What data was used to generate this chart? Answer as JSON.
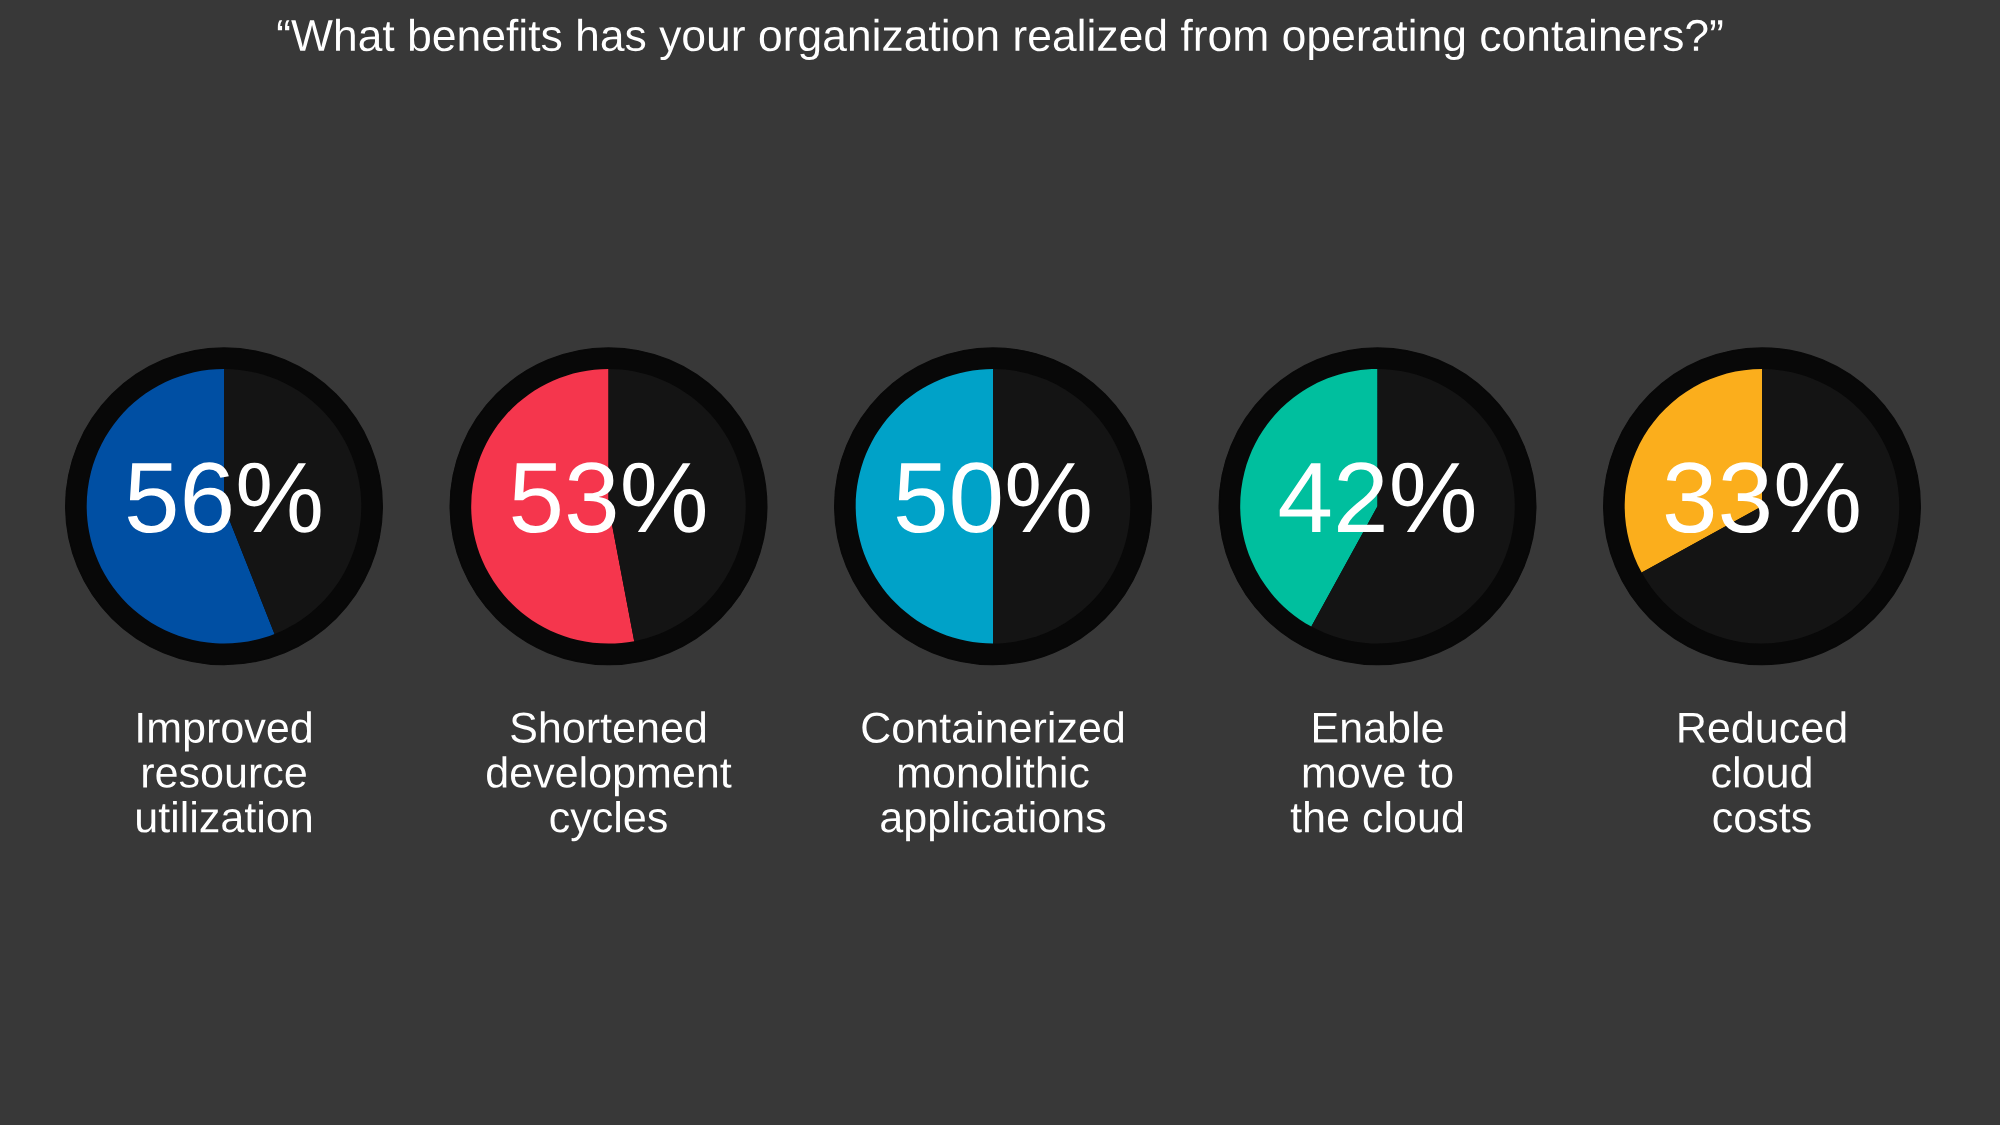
{
  "chart_data": [
    {
      "type": "pie",
      "title": "“What benefits has your organization realized from operating containers?”",
      "xlabel": "Improved\nresource\nutilization",
      "categories": [
        null,
        null
      ],
      "values": [
        56,
        44
      ],
      "colors": [
        "#004fa3",
        "#141414"
      ],
      "value_labels": [
        "56%",
        null
      ]
    },
    {
      "type": "pie",
      "xlabel": "Shortened\ndevelopment\ncycles",
      "categories": [
        null,
        null
      ],
      "values": [
        53,
        47
      ],
      "colors": [
        "#f5364d",
        "#141414"
      ],
      "value_labels": [
        "53%",
        null
      ]
    },
    {
      "type": "pie",
      "xlabel": "Containerized\nmonolithic\napplications",
      "categories": [
        null,
        null
      ],
      "values": [
        50,
        50
      ],
      "colors": [
        "#00a2c8",
        "#141414"
      ],
      "value_labels": [
        "50%",
        null
      ]
    },
    {
      "type": "pie",
      "xlabel": "Enable\nmove to\nthe cloud",
      "categories": [
        null,
        null
      ],
      "values": [
        42,
        58
      ],
      "colors": [
        "#00bf9e",
        "#141414"
      ],
      "value_labels": [
        "42%",
        null
      ]
    },
    {
      "type": "pie",
      "xlabel": "Reduced\ncloud\ncosts",
      "categories": [
        null,
        null
      ],
      "values": [
        33,
        67
      ],
      "colors": [
        "#fbae1c",
        "#141414"
      ],
      "value_labels": [
        "33%",
        null
      ]
    }
  ]
}
